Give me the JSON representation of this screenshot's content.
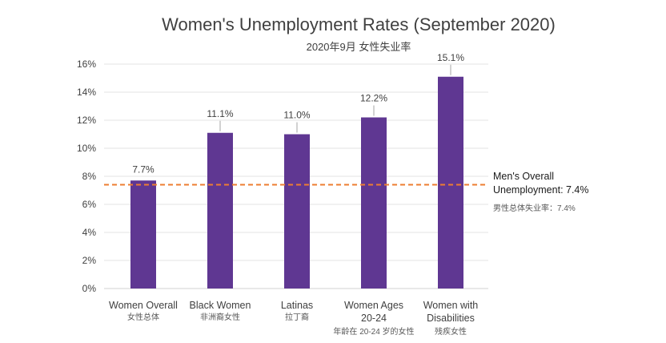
{
  "chart_data": {
    "type": "bar",
    "title": "Women's Unemployment Rates (September 2020)",
    "subtitle": "2020年9月 女性失业率",
    "categories": [
      {
        "label": [
          "Women Overall"
        ],
        "sub": "女性总体"
      },
      {
        "label": [
          "Black Women"
        ],
        "sub": "非洲裔女性"
      },
      {
        "label": [
          "Latinas"
        ],
        "sub": "拉丁裔"
      },
      {
        "label": [
          "Women Ages",
          "20-24"
        ],
        "sub": "年龄在 20-24 岁的女性"
      },
      {
        "label": [
          "Women with",
          "Disabilities"
        ],
        "sub": "残疾女性"
      }
    ],
    "values": [
      7.7,
      11.1,
      11.0,
      12.2,
      15.1
    ],
    "data_labels": [
      "7.7%",
      "11.1%",
      "11.0%",
      "12.2%",
      "15.1%"
    ],
    "ylim": [
      0,
      16
    ],
    "yticks": [
      "0%",
      "2%",
      "4%",
      "6%",
      "8%",
      "10%",
      "12%",
      "14%",
      "16%"
    ],
    "grid": true,
    "bar_color": "#5f3792",
    "reference_line": {
      "value": 7.4,
      "color": "#ed7d31",
      "label": [
        "Men's Overall",
        "Unemployment: 7.4%"
      ],
      "sub": "男性总体失业率：7.4%"
    }
  }
}
